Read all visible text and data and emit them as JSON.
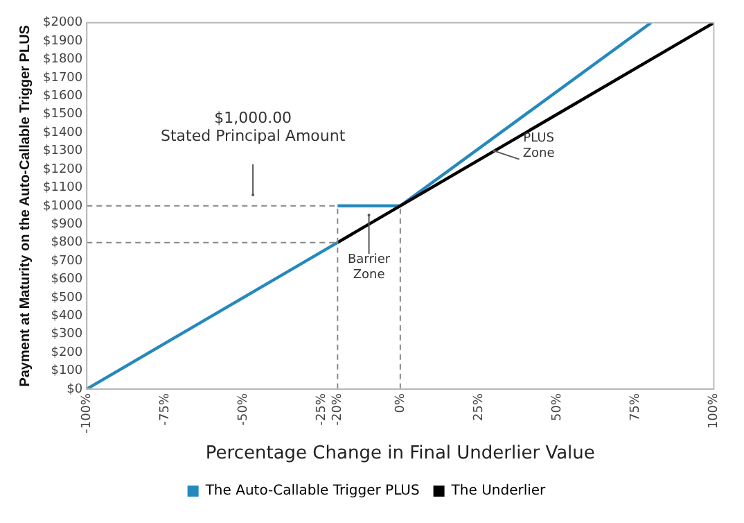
{
  "chart_data": {
    "type": "line",
    "xlabel": "Percentage Change in Final Underlier Value",
    "ylabel": "Payment at Maturity on the Auto-Callable Trigger PLUS",
    "xlim": [
      -100,
      100
    ],
    "xticks": [
      {
        "value": -100,
        "label": "-100%"
      },
      {
        "value": -75,
        "label": "-75%"
      },
      {
        "value": -50,
        "label": "-50%"
      },
      {
        "value": -25,
        "label": "-25%"
      },
      {
        "value": -20,
        "label": "-20%"
      },
      {
        "value": 0,
        "label": "0%"
      },
      {
        "value": 25,
        "label": "25%"
      },
      {
        "value": 50,
        "label": "50%"
      },
      {
        "value": 75,
        "label": "75%"
      },
      {
        "value": 100,
        "label": "100%"
      }
    ],
    "ylim": [
      0,
      2000
    ],
    "yticks": [
      {
        "value": 0,
        "label": "$0"
      },
      {
        "value": 100,
        "label": "$100"
      },
      {
        "value": 200,
        "label": "$200"
      },
      {
        "value": 300,
        "label": "$300"
      },
      {
        "value": 400,
        "label": "$400"
      },
      {
        "value": 500,
        "label": "$500"
      },
      {
        "value": 600,
        "label": "$600"
      },
      {
        "value": 700,
        "label": "$700"
      },
      {
        "value": 800,
        "label": "$800"
      },
      {
        "value": 900,
        "label": "$900"
      },
      {
        "value": 1000,
        "label": "$1000"
      },
      {
        "value": 1100,
        "label": "$1100"
      },
      {
        "value": 1200,
        "label": "$1200"
      },
      {
        "value": 1300,
        "label": "$1300"
      },
      {
        "value": 1400,
        "label": "$1400"
      },
      {
        "value": 1500,
        "label": "$1500"
      },
      {
        "value": 1600,
        "label": "$1600"
      },
      {
        "value": 1700,
        "label": "$1700"
      },
      {
        "value": 1800,
        "label": "$1800"
      },
      {
        "value": 1900,
        "label": "$1900"
      },
      {
        "value": 2000,
        "label": "$2000"
      }
    ],
    "grid": false,
    "legend": "bottom",
    "marker": "none",
    "series": [
      {
        "color": "#888888",
        "line_style": "dashed",
        "x": [
          -100,
          -20
        ],
        "values": [
          1000,
          1000
        ]
      },
      {
        "color": "#888888",
        "line_style": "dashed",
        "x": [
          -100,
          -20
        ],
        "values": [
          800,
          800
        ]
      },
      {
        "color": "#888888",
        "line_style": "dashed",
        "x": [
          -20,
          -20
        ],
        "values": [
          0,
          1000
        ]
      },
      {
        "color": "#888888",
        "line_style": "dashed",
        "x": [
          0,
          0
        ],
        "values": [
          0,
          1000
        ]
      },
      {
        "name": "The Underlier",
        "color": "#000000",
        "line_style": "solid",
        "x": [
          -20,
          100
        ],
        "values": [
          800,
          2000
        ]
      },
      {
        "name": "The Auto-Callable Trigger PLUS",
        "color": "#2589bd",
        "line_style": "solid",
        "x": [
          -100,
          -20,
          null,
          -20,
          0,
          80
        ],
        "values": [
          0,
          800,
          null,
          1000,
          1000,
          2000
        ]
      }
    ],
    "annotations": [
      "$1,000.00\nStated Principal Amount",
      {
        "text": "Barrier\nZone",
        "x": -10,
        "y": 950
      },
      {
        "text": "PLUS\nZone",
        "x": 30,
        "y": 1300
      }
    ]
  }
}
